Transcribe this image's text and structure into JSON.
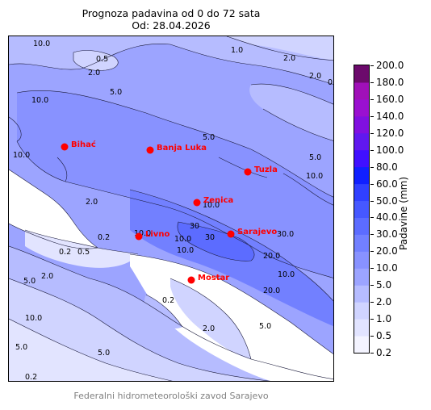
{
  "title": {
    "line1": "Prognoza padavina od 0 do 72 sata",
    "line2": "Od: 28.04.2026"
  },
  "colorbar": {
    "label": "Padavine (mm)",
    "levels": [
      "0.2",
      "0.5",
      "1.0",
      "2.0",
      "5.0",
      "10.0",
      "20.0",
      "30.0",
      "40.0",
      "50.0",
      "60.0",
      "80.0",
      "100.0",
      "120.0",
      "140.0",
      "160.0",
      "180.0",
      "200.0"
    ],
    "colors": [
      "#f4f4ff",
      "#e2e4ff",
      "#d0d4ff",
      "#b6bcff",
      "#9ca4ff",
      "#8892ff",
      "#7280ff",
      "#5c6cff",
      "#4658ff",
      "#3040ff",
      "#1020ff",
      "#4010ff",
      "#6018ef",
      "#8010e0",
      "#9a10d0",
      "#a010b8",
      "#6c0a6c"
    ]
  },
  "cities": [
    {
      "name": "Bihać"
    },
    {
      "name": "Banja Luka"
    },
    {
      "name": "Tuzla"
    },
    {
      "name": "Zenica"
    },
    {
      "name": "Sarajevo"
    },
    {
      "name": "Livno"
    },
    {
      "name": "Mostar"
    }
  ],
  "contour_labels": [
    "10.0",
    "0.5",
    "2.0",
    "1.0",
    "2.0",
    "5.0",
    "0",
    "2.0",
    "10.0",
    "5.0",
    "5.0",
    "10.0",
    "10.0",
    "10.0",
    "2.0",
    "10.0",
    "30",
    "30",
    "10.0",
    "30.0",
    "20.0",
    "10.0",
    "20.0",
    "10.0",
    "5.0",
    "5.0",
    "2.0",
    "10.0",
    "5.0",
    "0.2",
    "0.2",
    "0.5",
    "2.0",
    "5.0",
    "0.2",
    "0.2"
  ],
  "footer": "Federalni hidrometeorološki zavod Sarajevo",
  "colors": {
    "city_marker": "#ff0000",
    "sea": "#ffffff",
    "base_fill": "#9ca4ff"
  }
}
